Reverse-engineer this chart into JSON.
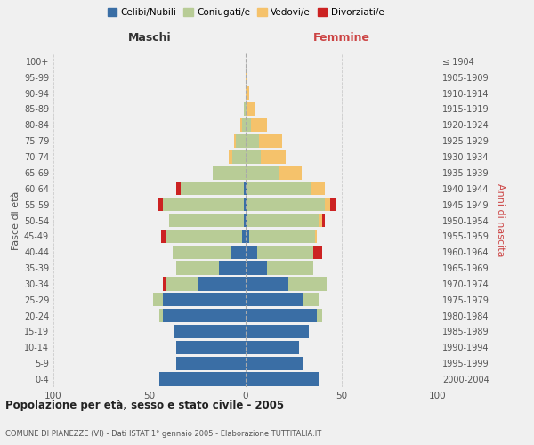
{
  "age_groups": [
    "0-4",
    "5-9",
    "10-14",
    "15-19",
    "20-24",
    "25-29",
    "30-34",
    "35-39",
    "40-44",
    "45-49",
    "50-54",
    "55-59",
    "60-64",
    "65-69",
    "70-74",
    "75-79",
    "80-84",
    "85-89",
    "90-94",
    "95-99",
    "100+"
  ],
  "birth_years": [
    "2000-2004",
    "1995-1999",
    "1990-1994",
    "1985-1989",
    "1980-1984",
    "1975-1979",
    "1970-1974",
    "1965-1969",
    "1960-1964",
    "1955-1959",
    "1950-1954",
    "1945-1949",
    "1940-1944",
    "1935-1939",
    "1930-1934",
    "1925-1929",
    "1920-1924",
    "1915-1919",
    "1910-1914",
    "1905-1909",
    "≤ 1904"
  ],
  "males": {
    "celibi": [
      45,
      36,
      36,
      37,
      43,
      43,
      25,
      14,
      8,
      2,
      1,
      1,
      1,
      0,
      0,
      0,
      0,
      0,
      0,
      0,
      0
    ],
    "coniugati": [
      0,
      0,
      0,
      0,
      2,
      5,
      16,
      22,
      30,
      39,
      39,
      42,
      33,
      17,
      7,
      5,
      2,
      1,
      0,
      0,
      0
    ],
    "vedovi": [
      0,
      0,
      0,
      0,
      0,
      0,
      0,
      0,
      0,
      0,
      0,
      0,
      0,
      0,
      2,
      1,
      1,
      0,
      0,
      0,
      0
    ],
    "divorziati": [
      0,
      0,
      0,
      0,
      0,
      0,
      2,
      0,
      0,
      3,
      0,
      3,
      2,
      0,
      0,
      0,
      0,
      0,
      0,
      0,
      0
    ]
  },
  "females": {
    "nubili": [
      38,
      30,
      28,
      33,
      37,
      30,
      22,
      11,
      6,
      2,
      1,
      1,
      1,
      0,
      0,
      0,
      0,
      0,
      0,
      0,
      0
    ],
    "coniugate": [
      0,
      0,
      0,
      0,
      3,
      8,
      20,
      24,
      29,
      34,
      37,
      40,
      33,
      17,
      8,
      7,
      3,
      1,
      0,
      0,
      0
    ],
    "vedove": [
      0,
      0,
      0,
      0,
      0,
      0,
      0,
      0,
      0,
      1,
      2,
      3,
      7,
      12,
      13,
      12,
      8,
      4,
      2,
      1,
      0
    ],
    "divorziate": [
      0,
      0,
      0,
      0,
      0,
      0,
      0,
      0,
      5,
      0,
      1,
      3,
      0,
      0,
      0,
      0,
      0,
      0,
      0,
      0,
      0
    ]
  },
  "colors": {
    "celibi": "#3a6ea5",
    "coniugati": "#b8cc96",
    "vedovi": "#f5c26b",
    "divorziati": "#cc2222"
  },
  "title": "Popolazione per età, sesso e stato civile - 2005",
  "subtitle": "COMUNE DI PIANEZZE (VI) - Dati ISTAT 1° gennaio 2005 - Elaborazione TUTTITALIA.IT",
  "xlabel_left": "Maschi",
  "xlabel_right": "Femmine",
  "ylabel_left": "Fasce di età",
  "ylabel_right": "Anni di nascita",
  "xlim": 100,
  "background_color": "#f0f0f0",
  "legend_labels": [
    "Celibi/Nubili",
    "Coniugati/e",
    "Vedovi/e",
    "Divorziati/e"
  ]
}
